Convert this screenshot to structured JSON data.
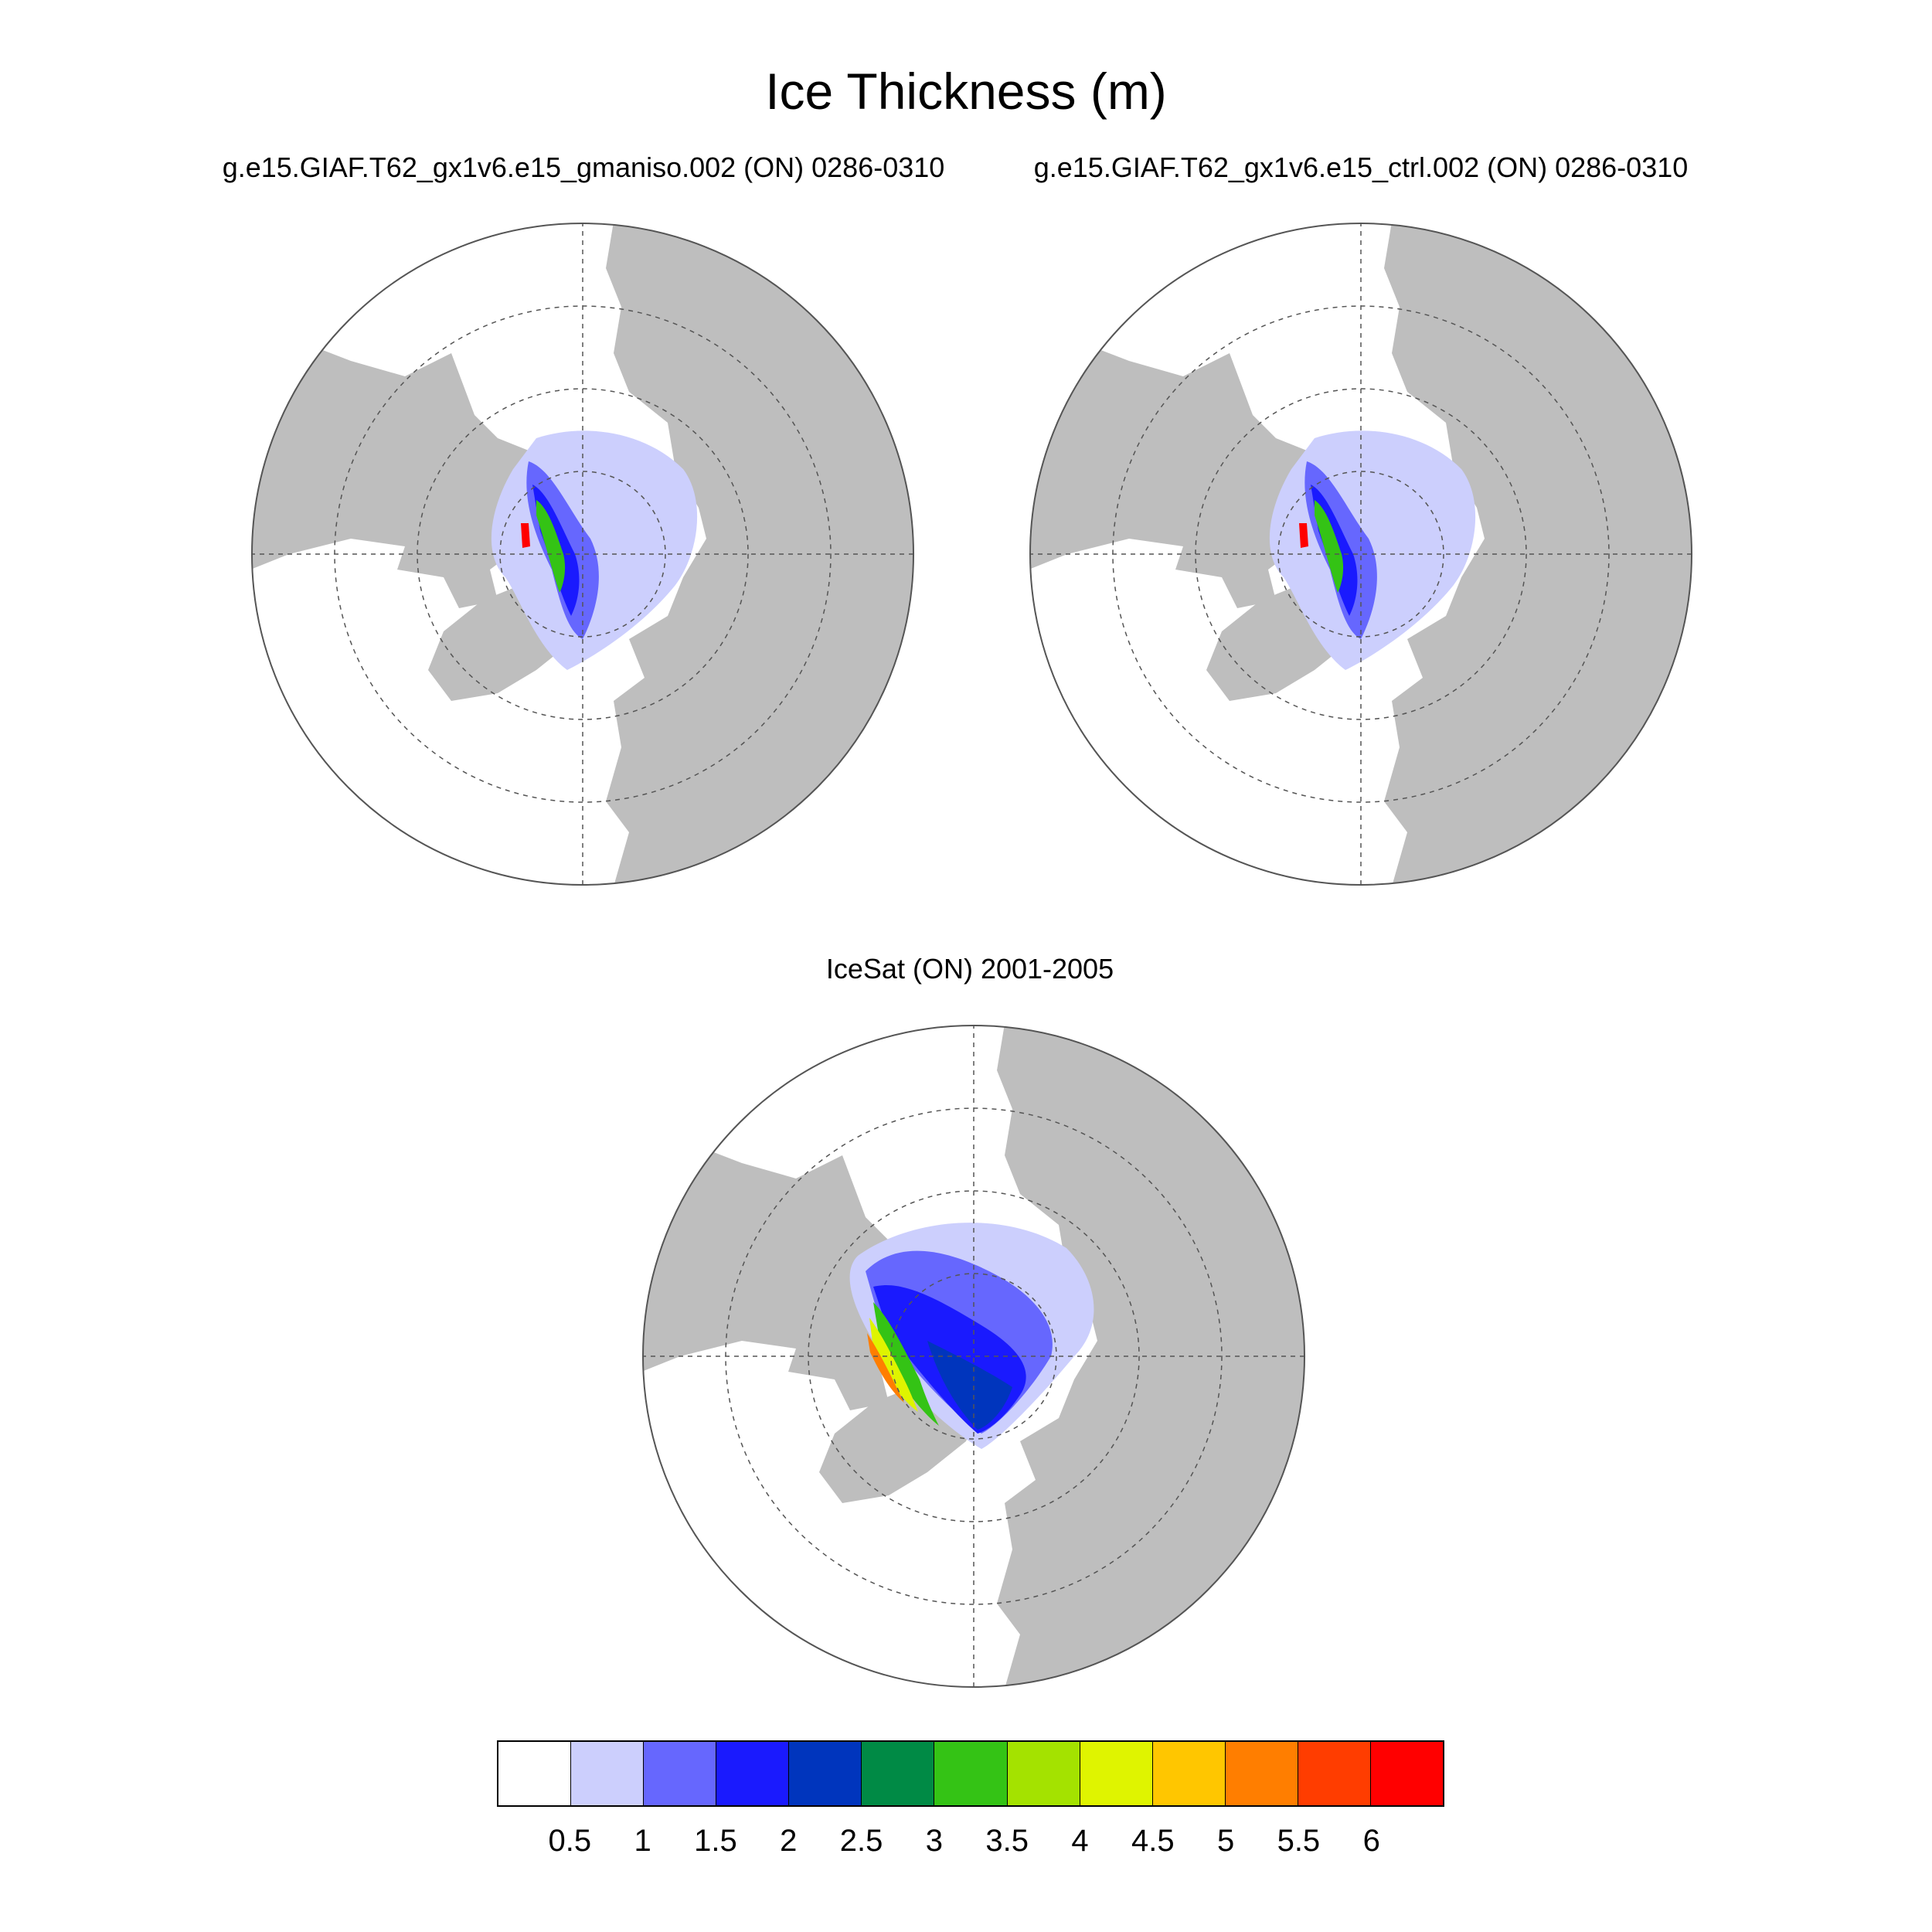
{
  "figure": {
    "title": "Ice Thickness (m)"
  },
  "panels": [
    {
      "id": "gmaniso",
      "subtitle": "g.e15.GIAF.T62_gx1v6.e15_gmaniso.002 (ON) 0286-0310"
    },
    {
      "id": "ctrl",
      "subtitle": "g.e15.GIAF.T62_gx1v6.e15_ctrl.002 (ON) 0286-0310"
    },
    {
      "id": "icesat",
      "subtitle": "IceSat (ON) 2001-2005"
    }
  ],
  "colorbar": {
    "labels": [
      "0.5",
      "1",
      "1.5",
      "2",
      "2.5",
      "3",
      "3.5",
      "4",
      "4.5",
      "5",
      "5.5",
      "6"
    ],
    "colors": [
      "#ffffff",
      "#cccffd",
      "#6667fe",
      "#1a1afe",
      "#0035bd",
      "#008a45",
      "#34c315",
      "#a4e200",
      "#dff400",
      "#ffc600",
      "#ff7e00",
      "#ff3d00",
      "#ff0000"
    ]
  },
  "map_style": {
    "land_color": "#bebebe",
    "ocean_color": "#ffffff",
    "grid_color": "#555555"
  }
}
